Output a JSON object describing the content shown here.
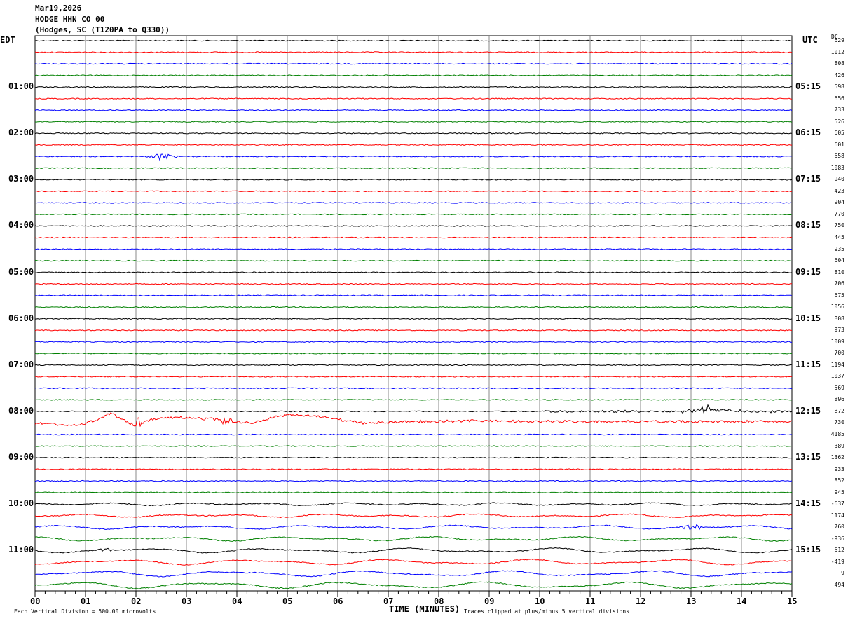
{
  "header": {
    "date": "Mar19,2026",
    "station": "HODGE HHN CO 00",
    "location": "(Hodges, SC (T120PA to Q330))"
  },
  "left_tz": "EDT",
  "right_tz": "UTC",
  "dc_label": "DC",
  "footer": {
    "scale_note": "Each Vertical Division =  500.00 microvolts",
    "xlabel": "TIME (MINUTES)",
    "clip_note": "Traces clipped at plus/minus 5 vertical divisions"
  },
  "chart_data": {
    "type": "line",
    "xlabel": "TIME (MINUTES)",
    "xlim": [
      0,
      15
    ],
    "xticks": [
      "00",
      "01",
      "02",
      "03",
      "04",
      "05",
      "06",
      "07",
      "08",
      "09",
      "10",
      "11",
      "12",
      "13",
      "14",
      "15"
    ],
    "grid": true,
    "trace_colors": [
      "#000000",
      "#ff0000",
      "#0000ff",
      "#008000"
    ],
    "edt_labels": [
      "01:00",
      "02:00",
      "03:00",
      "04:00",
      "05:00",
      "06:00",
      "07:00",
      "08:00",
      "09:00",
      "10:00",
      "11:00"
    ],
    "utc_labels": [
      "05:15",
      "06:15",
      "07:15",
      "08:15",
      "09:15",
      "10:15",
      "11:15",
      "12:15",
      "13:15",
      "14:15",
      "15:15"
    ],
    "dc_values": [
      "629",
      "1012",
      "808",
      "426",
      "598",
      "656",
      "733",
      "526",
      "605",
      "601",
      "658",
      "1083",
      "940",
      "423",
      "904",
      "770",
      "750",
      "445",
      "935",
      "604",
      "810",
      "706",
      "675",
      "1056",
      "808",
      "973",
      "1009",
      "700",
      "1194",
      "1037",
      "569",
      "896",
      "872",
      "730",
      "4185",
      "389",
      "1362",
      "933",
      "852",
      "945",
      "-637",
      "1174",
      "760",
      "-936",
      "612",
      "-419",
      "9",
      "494"
    ],
    "events": [
      {
        "trace": 10,
        "minute": 2.5,
        "note": "local event burst"
      },
      {
        "trace": 33,
        "minute": 1.5,
        "note": "large long-period wander, minutes 0-7"
      },
      {
        "trace": 32,
        "minute": 13.3,
        "note": "event with noise after minute 10"
      },
      {
        "trace": 42,
        "minute": 13.0,
        "note": "small burst"
      }
    ]
  }
}
